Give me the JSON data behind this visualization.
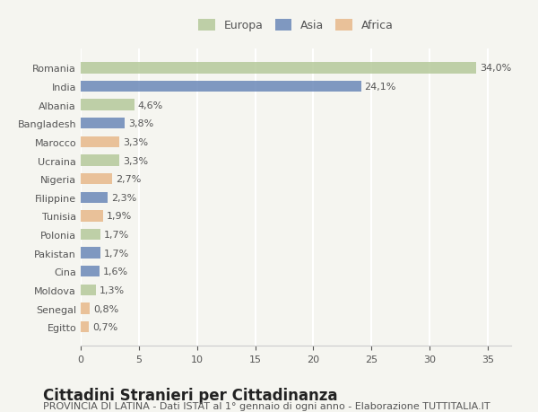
{
  "countries": [
    "Romania",
    "India",
    "Albania",
    "Bangladesh",
    "Marocco",
    "Ucraina",
    "Nigeria",
    "Filippine",
    "Tunisia",
    "Polonia",
    "Pakistan",
    "Cina",
    "Moldova",
    "Senegal",
    "Egitto"
  ],
  "values": [
    34.0,
    24.1,
    4.6,
    3.8,
    3.3,
    3.3,
    2.7,
    2.3,
    1.9,
    1.7,
    1.7,
    1.6,
    1.3,
    0.8,
    0.7
  ],
  "labels": [
    "34,0%",
    "24,1%",
    "4,6%",
    "3,8%",
    "3,3%",
    "3,3%",
    "2,7%",
    "2,3%",
    "1,9%",
    "1,7%",
    "1,7%",
    "1,6%",
    "1,3%",
    "0,8%",
    "0,7%"
  ],
  "continents": [
    "Europa",
    "Asia",
    "Europa",
    "Asia",
    "Africa",
    "Europa",
    "Africa",
    "Asia",
    "Africa",
    "Europa",
    "Asia",
    "Asia",
    "Europa",
    "Africa",
    "Africa"
  ],
  "colors": {
    "Europa": "#b5c99a",
    "Asia": "#6b88b8",
    "Africa": "#e8b88a"
  },
  "legend_order": [
    "Europa",
    "Asia",
    "Africa"
  ],
  "xlim": [
    0,
    37
  ],
  "xticks": [
    0,
    5,
    10,
    15,
    20,
    25,
    30,
    35
  ],
  "title": "Cittadini Stranieri per Cittadinanza",
  "subtitle": "PROVINCIA DI LATINA - Dati ISTAT al 1° gennaio di ogni anno - Elaborazione TUTTITALIA.IT",
  "background_color": "#f5f5f0",
  "bar_alpha": 0.85,
  "grid_color": "#ffffff",
  "title_fontsize": 12,
  "subtitle_fontsize": 8,
  "label_fontsize": 8,
  "tick_fontsize": 8
}
